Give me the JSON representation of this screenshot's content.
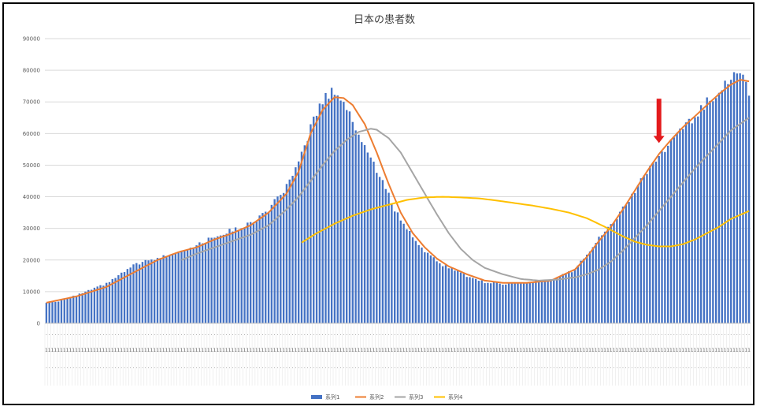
{
  "chart_data": {
    "type": "bar",
    "title": "日本の患者数",
    "ylim": [
      0,
      90000
    ],
    "yticks": [
      0,
      10000,
      20000,
      30000,
      40000,
      50000,
      60000,
      70000,
      80000,
      90000
    ],
    "grid": true,
    "legend_position": "bottom",
    "series": [
      {
        "name": "系列1",
        "kind": "bar",
        "color": "#4472C4",
        "keypoints": [
          [
            0,
            6500
          ],
          [
            4,
            7000
          ],
          [
            10,
            8800
          ],
          [
            20,
            12500
          ],
          [
            30,
            18800
          ],
          [
            37,
            20500
          ],
          [
            44,
            22800
          ],
          [
            50,
            24500
          ],
          [
            56,
            27500
          ],
          [
            62,
            29500
          ],
          [
            68,
            31500
          ],
          [
            74,
            36000
          ],
          [
            80,
            43000
          ],
          [
            84,
            50000
          ],
          [
            88,
            62000
          ],
          [
            92,
            70500
          ],
          [
            96,
            74000
          ],
          [
            100,
            68000
          ],
          [
            104,
            60000
          ],
          [
            108,
            52000
          ],
          [
            112,
            45000
          ],
          [
            116,
            36000
          ],
          [
            120,
            30000
          ],
          [
            124,
            25000
          ],
          [
            128,
            21000
          ],
          [
            132,
            18500
          ],
          [
            136,
            17000
          ],
          [
            140,
            15000
          ],
          [
            146,
            13000
          ],
          [
            152,
            12500
          ],
          [
            160,
            12800
          ],
          [
            168,
            13500
          ],
          [
            176,
            17000
          ],
          [
            180,
            22000
          ],
          [
            184,
            27000
          ],
          [
            188,
            31000
          ],
          [
            192,
            36000
          ],
          [
            196,
            42000
          ],
          [
            200,
            48000
          ],
          [
            204,
            53000
          ],
          [
            208,
            57000
          ],
          [
            212,
            62000
          ],
          [
            216,
            65000
          ],
          [
            220,
            70000
          ],
          [
            224,
            74000
          ],
          [
            228,
            78000
          ],
          [
            231,
            78500
          ],
          [
            234,
            73500
          ]
        ]
      },
      {
        "name": "系列2",
        "kind": "line",
        "color": "#ED7D31",
        "start": 0,
        "keypoints": [
          [
            0,
            6500
          ],
          [
            10,
            8500
          ],
          [
            20,
            11500
          ],
          [
            30,
            16500
          ],
          [
            37,
            20000
          ],
          [
            44,
            22500
          ],
          [
            50,
            24000
          ],
          [
            56,
            26500
          ],
          [
            62,
            28500
          ],
          [
            68,
            31000
          ],
          [
            74,
            35000
          ],
          [
            80,
            41000
          ],
          [
            84,
            48000
          ],
          [
            88,
            60000
          ],
          [
            92,
            67500
          ],
          [
            96,
            71500
          ],
          [
            99,
            71200
          ],
          [
            102,
            69000
          ],
          [
            106,
            63000
          ],
          [
            110,
            54000
          ],
          [
            114,
            44000
          ],
          [
            118,
            35000
          ],
          [
            122,
            28500
          ],
          [
            126,
            24000
          ],
          [
            130,
            20500
          ],
          [
            134,
            18000
          ],
          [
            140,
            15500
          ],
          [
            146,
            13500
          ],
          [
            152,
            12800
          ],
          [
            160,
            12800
          ],
          [
            168,
            13500
          ],
          [
            176,
            17000
          ],
          [
            180,
            21000
          ],
          [
            184,
            26000
          ],
          [
            188,
            30500
          ],
          [
            192,
            36000
          ],
          [
            196,
            42000
          ],
          [
            200,
            48000
          ],
          [
            204,
            53500
          ],
          [
            208,
            58000
          ],
          [
            212,
            62000
          ],
          [
            216,
            65500
          ],
          [
            220,
            69000
          ],
          [
            224,
            72500
          ],
          [
            228,
            75500
          ],
          [
            231,
            77000
          ],
          [
            234,
            76500
          ]
        ]
      },
      {
        "name": "系列3",
        "kind": "line",
        "color": "#A5A5A5",
        "start": 45,
        "keypoints": [
          [
            45,
            20000
          ],
          [
            50,
            22000
          ],
          [
            56,
            24000
          ],
          [
            62,
            26000
          ],
          [
            68,
            28000
          ],
          [
            74,
            31000
          ],
          [
            80,
            36000
          ],
          [
            84,
            40000
          ],
          [
            88,
            45000
          ],
          [
            92,
            50000
          ],
          [
            96,
            54500
          ],
          [
            100,
            58000
          ],
          [
            104,
            60500
          ],
          [
            108,
            61500
          ],
          [
            110,
            61200
          ],
          [
            114,
            58500
          ],
          [
            118,
            54000
          ],
          [
            122,
            47500
          ],
          [
            126,
            41000
          ],
          [
            130,
            34500
          ],
          [
            134,
            28500
          ],
          [
            138,
            23500
          ],
          [
            142,
            20000
          ],
          [
            146,
            17500
          ],
          [
            152,
            15500
          ],
          [
            158,
            14000
          ],
          [
            164,
            13500
          ],
          [
            170,
            13800
          ],
          [
            176,
            14500
          ],
          [
            180,
            15500
          ],
          [
            184,
            17000
          ],
          [
            188,
            19500
          ],
          [
            192,
            23000
          ],
          [
            196,
            27000
          ],
          [
            200,
            31000
          ],
          [
            204,
            35500
          ],
          [
            208,
            40000
          ],
          [
            212,
            44500
          ],
          [
            216,
            49000
          ],
          [
            220,
            53000
          ],
          [
            224,
            57000
          ],
          [
            228,
            61000
          ],
          [
            234,
            65000
          ]
        ]
      },
      {
        "name": "系列4",
        "kind": "line",
        "color": "#FFC000",
        "start": 85,
        "keypoints": [
          [
            85,
            25500
          ],
          [
            90,
            28500
          ],
          [
            96,
            31500
          ],
          [
            102,
            34000
          ],
          [
            108,
            36000
          ],
          [
            114,
            37500
          ],
          [
            120,
            39000
          ],
          [
            126,
            39800
          ],
          [
            132,
            40000
          ],
          [
            138,
            39800
          ],
          [
            144,
            39500
          ],
          [
            150,
            38800
          ],
          [
            156,
            38000
          ],
          [
            162,
            37200
          ],
          [
            168,
            36200
          ],
          [
            174,
            35000
          ],
          [
            180,
            33200
          ],
          [
            186,
            30500
          ],
          [
            192,
            27500
          ],
          [
            196,
            25800
          ],
          [
            200,
            24800
          ],
          [
            204,
            24300
          ],
          [
            208,
            24300
          ],
          [
            212,
            25000
          ],
          [
            216,
            26500
          ],
          [
            220,
            28500
          ],
          [
            224,
            30500
          ],
          [
            228,
            33000
          ],
          [
            234,
            35500
          ]
        ]
      }
    ],
    "annotation": {
      "kind": "arrow-down",
      "color": "#E31A1C",
      "x": 204,
      "y_top": 71000,
      "y_bottom": 57000
    },
    "x_axis": {
      "count": 235,
      "day_of_week_row": true,
      "day_number_row": true
    }
  }
}
